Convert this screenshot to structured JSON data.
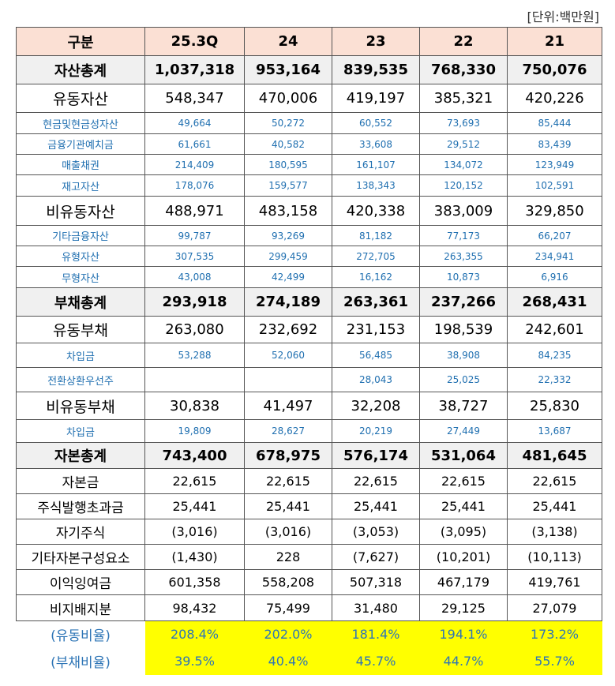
{
  "unit": "[단위:백만원]",
  "table": {
    "header": [
      "구분",
      "25.3Q",
      "24",
      "23",
      "22",
      "21"
    ],
    "rows": [
      [
        "자산총계",
        "1,037,318",
        "953,164",
        "839,535",
        "768,330",
        "750,076"
      ],
      [
        "유동자산",
        "548,347",
        "470,006",
        "419,197",
        "385,321",
        "420,226"
      ],
      [
        "현금및현금성자산",
        "49,664",
        "50,272",
        "60,552",
        "73,693",
        "85,444"
      ],
      [
        "금융기관예치금",
        "61,661",
        "40,582",
        "33,608",
        "29,512",
        "83,439"
      ],
      [
        "매출채권",
        "214,409",
        "180,595",
        "161,107",
        "134,072",
        "123,949"
      ],
      [
        "재고자산",
        "178,076",
        "159,577",
        "138,343",
        "120,152",
        "102,591"
      ],
      [
        "비유동자산",
        "488,971",
        "483,158",
        "420,338",
        "383,009",
        "329,850"
      ],
      [
        "기타금융자산",
        "99,787",
        "93,269",
        "81,182",
        "77,173",
        "66,207"
      ],
      [
        "유형자산",
        "307,535",
        "299,459",
        "272,705",
        "263,355",
        "234,941"
      ],
      [
        "무형자산",
        "43,008",
        "42,499",
        "16,162",
        "10,873",
        "6,916"
      ],
      [
        "부채총계",
        "293,918",
        "274,189",
        "263,361",
        "237,266",
        "268,431"
      ],
      [
        "유동부채",
        "263,080",
        "232,692",
        "231,153",
        "198,539",
        "242,601"
      ],
      [
        "차입금",
        "53,288",
        "52,060",
        "56,485",
        "38,908",
        "84,235"
      ],
      [
        "전환상환우선주",
        null,
        null,
        "28,043",
        "25,025",
        "22,332"
      ],
      [
        "비유동부채",
        "30,838",
        "41,497",
        "32,208",
        "38,727",
        "25,830"
      ],
      [
        "차입금",
        "19,809",
        "28,627",
        "20,219",
        "27,449",
        "13,687"
      ],
      [
        "자본총계",
        "743,400",
        "678,975",
        "576,174",
        "531,064",
        "481,645"
      ],
      [
        "자본금",
        "22,615",
        "22,615",
        "22,615",
        "22,615",
        "22,615"
      ],
      [
        "주식발행초과금",
        "25,441",
        "25,441",
        "25,441",
        "25,441",
        "25,441"
      ],
      [
        "자기주식",
        "(3,016)",
        "(3,016)",
        "(3,053)",
        "(3,095)",
        "(3,138)"
      ],
      [
        "기타자본구성요소",
        "(1,430)",
        "228",
        "(7,627)",
        "(10,201)",
        "(10,113)"
      ],
      [
        "이익잉여금",
        "601,358",
        "558,208",
        "507,318",
        "467,179",
        "419,761"
      ],
      [
        "비지배지분",
        "98,432",
        "75,499",
        "31,480",
        "29,125",
        "27,079"
      ],
      [
        "(유동비율)",
        "208.4%",
        "202.0%",
        "181.4%",
        "194.1%",
        "173.2%"
      ],
      [
        "(부채비율)",
        "39.5%",
        "40.4%",
        "45.7%",
        "44.7%",
        "55.7%"
      ]
    ]
  }
}
